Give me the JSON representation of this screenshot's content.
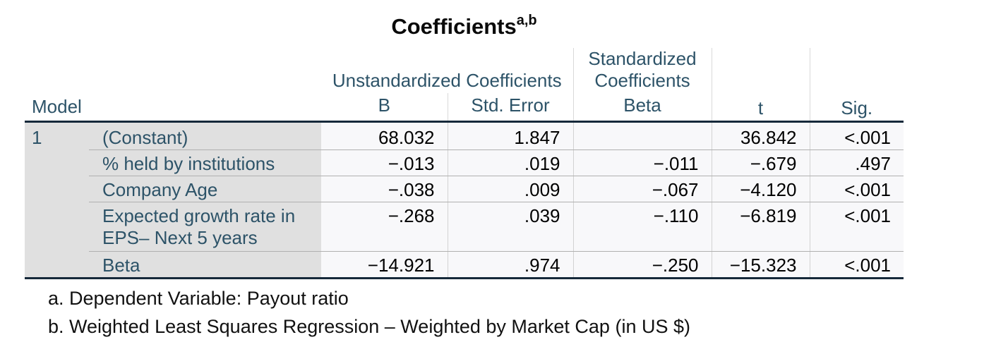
{
  "title": {
    "text": "Coefficients",
    "superscript": "a,b"
  },
  "table": {
    "corner_header": "Model",
    "model_number": "1",
    "spanners": {
      "unstandardized": "Unstandardized Coefficients",
      "standardized_line1": "Standardized",
      "standardized_line2": "Coefficients"
    },
    "column_headers": {
      "b": "B",
      "std_error": "Std. Error",
      "beta": "Beta",
      "t": "t",
      "sig": "Sig."
    },
    "rows": [
      {
        "label": "(Constant)",
        "b": "68.032",
        "std_error": "1.847",
        "beta": "",
        "t": "36.842",
        "sig": "<.001"
      },
      {
        "label": "% held by institutions",
        "b": "−.013",
        "std_error": ".019",
        "beta": "−.011",
        "t": "−.679",
        "sig": ".497"
      },
      {
        "label": "Company Age",
        "b": "−.038",
        "std_error": ".009",
        "beta": "−.067",
        "t": "−4.120",
        "sig": "<.001"
      },
      {
        "label": "Expected growth rate in EPS– Next 5 years",
        "b": "−.268",
        "std_error": ".039",
        "beta": "−.110",
        "t": "−6.819",
        "sig": "<.001"
      },
      {
        "label": "Beta",
        "b": "−14.921",
        "std_error": ".974",
        "beta": "−.250",
        "t": "−15.323",
        "sig": "<.001"
      }
    ]
  },
  "footnotes": {
    "a": "a. Dependent Variable: Payout ratio",
    "b": "b. Weighted Least Squares Regression – Weighted by Market Cap (in US $)"
  },
  "colors": {
    "header_text": "#2D5368",
    "dark_border": "#16293A",
    "label_background": "#E0E0E0",
    "cell_background": "#F8F8FA",
    "row_divider": "#B0B0B0"
  }
}
